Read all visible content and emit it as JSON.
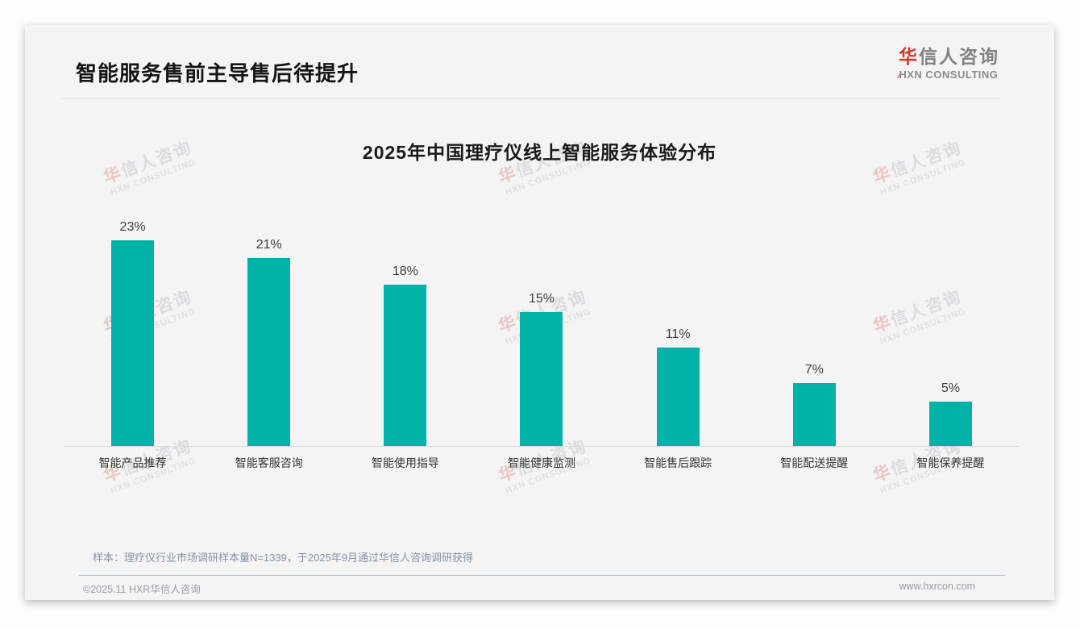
{
  "header": {
    "title": "智能服务售前主导售后待提升"
  },
  "logo": {
    "cn_first": "华",
    "cn_rest": "信人咨询",
    "en": "HXN CONSULTING",
    "red": "#d6382c"
  },
  "watermark": {
    "cn_first": "华",
    "cn_rest": "信人咨询",
    "en": "HXN CONSULTING"
  },
  "chart_data": {
    "type": "bar",
    "title": "2025年中国理疗仪线上智能服务体验分布",
    "categories": [
      "智能产品推荐",
      "智能客服咨询",
      "智能使用指导",
      "智能健康监测",
      "智能售后跟踪",
      "智能配送提醒",
      "智能保养提醒"
    ],
    "values": [
      23,
      21,
      18,
      15,
      11,
      7,
      5
    ],
    "unit": "%",
    "bar_color": "#00B3A6",
    "ylim": [
      0,
      25
    ],
    "grid": false,
    "data_labels": true,
    "xlabel": "",
    "ylabel": ""
  },
  "footnote": "样本：理疗仪行业市场调研样本量N=1339，于2025年9月通过华信人咨询调研获得",
  "footer": {
    "left": "©2025.11 HXR华信人咨询",
    "right": "www.hxrcon.com"
  }
}
